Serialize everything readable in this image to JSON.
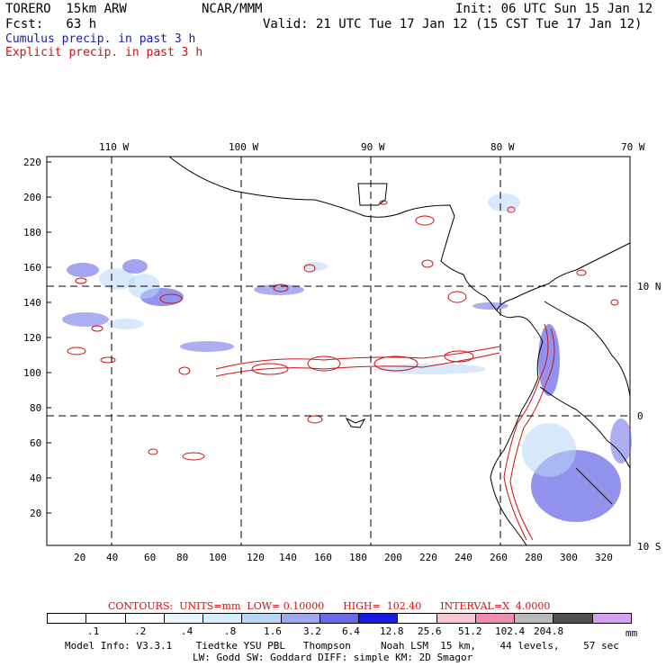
{
  "header": {
    "model": "TORERO  15km ARW",
    "org": "NCAR/MMM",
    "init": "Init: 06 UTC Sun 15 Jan 12",
    "fcst": "Fcst:   63 h",
    "valid": "Valid: 21 UTC Tue 17 Jan 12 (15 CST Tue 17 Jan 12)",
    "legend_cumulus": "Cumulus precip. in past 3 h",
    "legend_explicit": "Explicit precip. in past 3 h"
  },
  "colors": {
    "cumulus": "#1a1aa8",
    "explicit": "#d01010",
    "coast": "#000000"
  },
  "axes": {
    "top_lon_labels": [
      "110 W",
      "100 W",
      "90 W",
      "80 W",
      "70 W"
    ],
    "right_lat_labels": [
      "10 N",
      "0",
      "10 S"
    ],
    "y_ticks": [
      "220",
      "200",
      "180",
      "160",
      "140",
      "120",
      "100",
      "80",
      "60",
      "40",
      "20"
    ],
    "x_ticks": [
      "20",
      "40",
      "60",
      "80",
      "100",
      "120",
      "140",
      "160",
      "180",
      "200",
      "220",
      "240",
      "260",
      "280",
      "300",
      "320"
    ]
  },
  "contour_info": "CONTOURS:  UNITS=mm  LOW= 0.10000      HIGH=  102.40      INTERVAL=X  4.0000",
  "colorbar": {
    "labels": [
      ".1",
      ".2",
      ".4",
      ".8",
      "1.6",
      "3.2",
      "6.4",
      "12.8",
      "25.6",
      "51.2",
      "102.4",
      "204.8",
      "mm"
    ],
    "colors": [
      "#ffffff",
      "#ffffff",
      "#eaf6ff",
      "#d7eefc",
      "#b8d7f8",
      "#a0a6f0",
      "#6a6ae8",
      "#1a1ae0",
      "#ffffff",
      "#f6c7cf",
      "#f08cb4",
      "#b8b8b8",
      "#505050",
      "#d8a0f0"
    ]
  },
  "footer": {
    "line1": "Model Info: V3.3.1    Tiedtke YSU PBL   Thompson     Noah LSM  15 km,    44 levels,    57 sec",
    "line2": "LW: Godd SW: Goddard DIFF: simple KM: 2D Smagor"
  }
}
